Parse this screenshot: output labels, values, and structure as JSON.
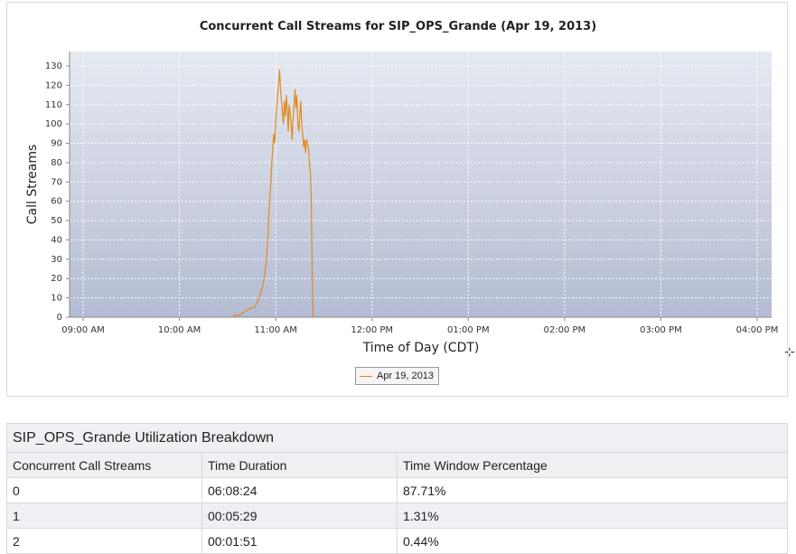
{
  "chart_data": {
    "type": "line",
    "title": "Concurrent Call Streams for SIP_OPS_Grande (Apr 19, 2013)",
    "xlabel": "Time of Day (CDT)",
    "ylabel": "Call Streams",
    "ylim": [
      0,
      130
    ],
    "yticks": [
      0,
      10,
      20,
      30,
      40,
      50,
      60,
      70,
      80,
      90,
      100,
      110,
      120,
      130
    ],
    "xticks": [
      "09:00 AM",
      "10:00 AM",
      "11:00 AM",
      "12:00 PM",
      "01:00 PM",
      "02:00 PM",
      "03:00 PM",
      "04:00 PM"
    ],
    "xlim_hours": [
      9,
      16
    ],
    "grid": true,
    "legend": "bottom-center",
    "series": [
      {
        "name": "Apr 19, 2013",
        "color": "#e08a1e",
        "x_hours": [
          10.55,
          10.58,
          10.62,
          10.65,
          10.68,
          10.72,
          10.75,
          10.78,
          10.8,
          10.82,
          10.84,
          10.86,
          10.88,
          10.9,
          10.92,
          10.93,
          10.95,
          10.96,
          10.97,
          10.98,
          10.99,
          11.0,
          11.01,
          11.02,
          11.03,
          11.04,
          11.05,
          11.06,
          11.07,
          11.08,
          11.09,
          11.1,
          11.11,
          11.12,
          11.13,
          11.14,
          11.15,
          11.16,
          11.17,
          11.18,
          11.19,
          11.2,
          11.21,
          11.22,
          11.23,
          11.24,
          11.25,
          11.26,
          11.27,
          11.28,
          11.29,
          11.3,
          11.31,
          11.32,
          11.33,
          11.34,
          11.35,
          11.36,
          11.37,
          11.375,
          11.38,
          11.385,
          11.39
        ],
        "values": [
          0,
          1,
          1,
          2,
          3,
          4,
          5,
          5,
          7,
          9,
          12,
          15,
          20,
          28,
          42,
          55,
          70,
          80,
          88,
          95,
          90,
          100,
          108,
          115,
          120,
          128,
          118,
          112,
          106,
          100,
          112,
          104,
          115,
          108,
          96,
          110,
          105,
          100,
          92,
          102,
          110,
          118,
          108,
          115,
          100,
          96,
          104,
          112,
          100,
          95,
          88,
          92,
          85,
          92,
          90,
          88,
          80,
          75,
          60,
          40,
          20,
          5,
          0
        ]
      }
    ]
  },
  "table": {
    "title": "SIP_OPS_Grande Utilization Breakdown",
    "headers": [
      "Concurrent Call Streams",
      "Time Duration",
      "Time Window Percentage"
    ],
    "rows": [
      [
        "0",
        "06:08:24",
        "87.71%"
      ],
      [
        "1",
        "00:05:29",
        "1.31%"
      ],
      [
        "2",
        "00:01:51",
        "0.44%"
      ]
    ]
  },
  "crosshair_icon": "crosshair-cursor-icon"
}
